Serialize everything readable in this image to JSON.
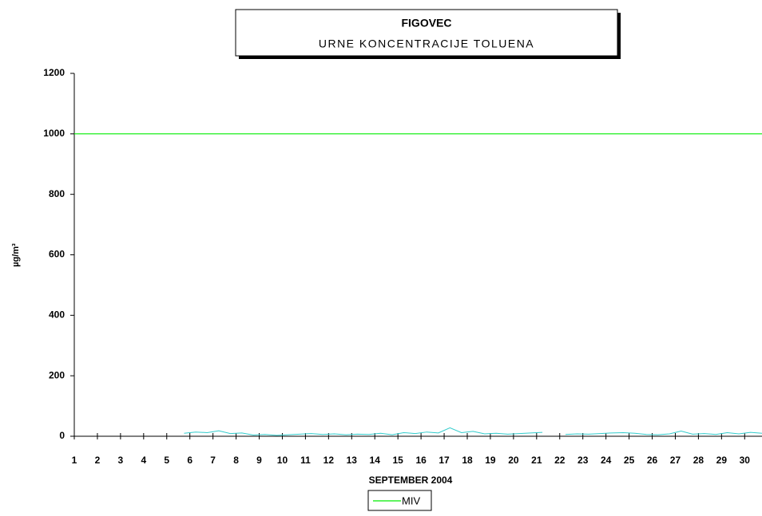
{
  "chart_data": {
    "type": "line",
    "title": "FIGOVEC",
    "subtitle": "URNE KONCENTRACIJE TOLUENA",
    "x_label": "SEPTEMBER 2004",
    "y_label": "µg/m³",
    "xlim": [
      1,
      30.75
    ],
    "xticks": [
      1,
      2,
      3,
      4,
      5,
      6,
      7,
      8,
      9,
      10,
      11,
      12,
      13,
      14,
      15,
      16,
      17,
      18,
      19,
      20,
      21,
      22,
      23,
      24,
      25,
      26,
      27,
      28,
      29,
      30
    ],
    "ylim": [
      0,
      1200
    ],
    "yticks": [
      0,
      200,
      400,
      600,
      800,
      1000,
      1200
    ],
    "grid": false,
    "legend": "bottom",
    "series": [
      {
        "color": "#33cccc",
        "x": [
          5.75,
          6.25,
          6.75,
          7.25,
          7.75,
          8.25,
          8.75,
          9.25,
          9.75,
          10.25,
          10.75,
          11.25,
          11.75,
          12.25,
          12.75,
          13.25,
          13.75,
          14.25,
          14.75,
          15.25,
          15.75,
          16.25,
          16.75,
          17.25,
          17.75,
          18.25,
          18.75,
          19.25,
          19.75,
          20.25,
          20.75,
          21.25,
          21.75,
          22.25,
          22.75,
          23.25,
          23.75,
          24.25,
          24.75,
          25.25,
          25.75,
          26.25,
          26.75,
          27.25,
          27.75,
          28.25,
          28.75,
          29.25,
          29.75,
          30.25,
          30.75
        ],
        "values": [
          10,
          14,
          12,
          18,
          9,
          11,
          4,
          6,
          3,
          5,
          7,
          9,
          6,
          8,
          5,
          7,
          6,
          10,
          5,
          12,
          9,
          14,
          11,
          28,
          12,
          16,
          8,
          10,
          7,
          9,
          11,
          13,
          null,
          6,
          8,
          7,
          9,
          11,
          12,
          10,
          6,
          5,
          8,
          17,
          7,
          9,
          6,
          12,
          8,
          13,
          10
        ]
      }
    ],
    "limit": {
      "name": "MIV",
      "value": 1000,
      "color": "#00ee00"
    }
  }
}
